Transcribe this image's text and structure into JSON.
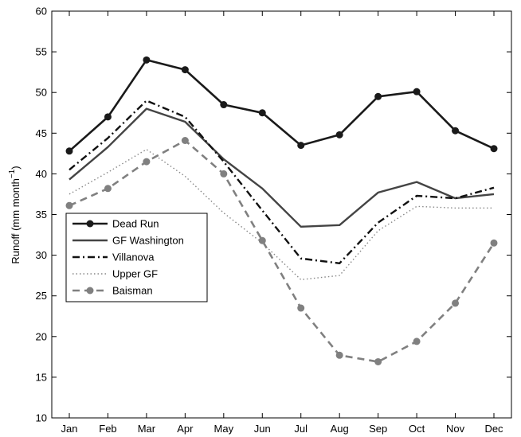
{
  "chart_data": {
    "type": "line",
    "categories": [
      "Jan",
      "Feb",
      "Mar",
      "Apr",
      "May",
      "Jun",
      "Jul",
      "Aug",
      "Sep",
      "Oct",
      "Nov",
      "Dec"
    ],
    "ylabel": "Runoff (mm month",
    "ylabel_superscript": "−1",
    "ylabel_suffix": ")",
    "ylim": [
      10,
      60
    ],
    "yticks": [
      10,
      15,
      20,
      25,
      30,
      35,
      40,
      45,
      50,
      55,
      60
    ],
    "grid": false,
    "legend_position": "middle-left",
    "series": [
      {
        "name": "Dead Run",
        "values": [
          42.8,
          47.0,
          54.0,
          52.8,
          48.5,
          47.5,
          43.5,
          44.8,
          49.5,
          50.1,
          45.3,
          43.1
        ],
        "color": "#1a1a1a",
        "dash": "solid",
        "marker": "circle",
        "width": 2.6
      },
      {
        "name": "GF Washington",
        "values": [
          39.3,
          43.3,
          48.0,
          46.4,
          41.8,
          38.2,
          33.5,
          33.7,
          37.7,
          39.0,
          37.0,
          37.5
        ],
        "color": "#444444",
        "dash": "solid",
        "marker": "none",
        "width": 2.4
      },
      {
        "name": "Villanova",
        "values": [
          40.5,
          44.4,
          49.0,
          47.0,
          41.5,
          35.5,
          29.6,
          29.0,
          34.0,
          37.3,
          37.0,
          38.3
        ],
        "color": "#111111",
        "dash": "dashdot",
        "marker": "none",
        "width": 2.4
      },
      {
        "name": "Upper GF",
        "values": [
          37.5,
          40.2,
          43.0,
          39.7,
          35.2,
          31.5,
          27.0,
          27.5,
          33.0,
          36.0,
          35.8,
          35.8
        ],
        "color": "#888888",
        "dash": "dotted",
        "marker": "none",
        "width": 1.4
      },
      {
        "name": "Baisman",
        "values": [
          36.1,
          38.2,
          41.5,
          44.1,
          40.0,
          31.8,
          23.5,
          17.7,
          16.9,
          19.4,
          24.1,
          31.5
        ],
        "color": "#808080",
        "dash": "dashed",
        "marker": "circle",
        "width": 2.6
      }
    ]
  }
}
